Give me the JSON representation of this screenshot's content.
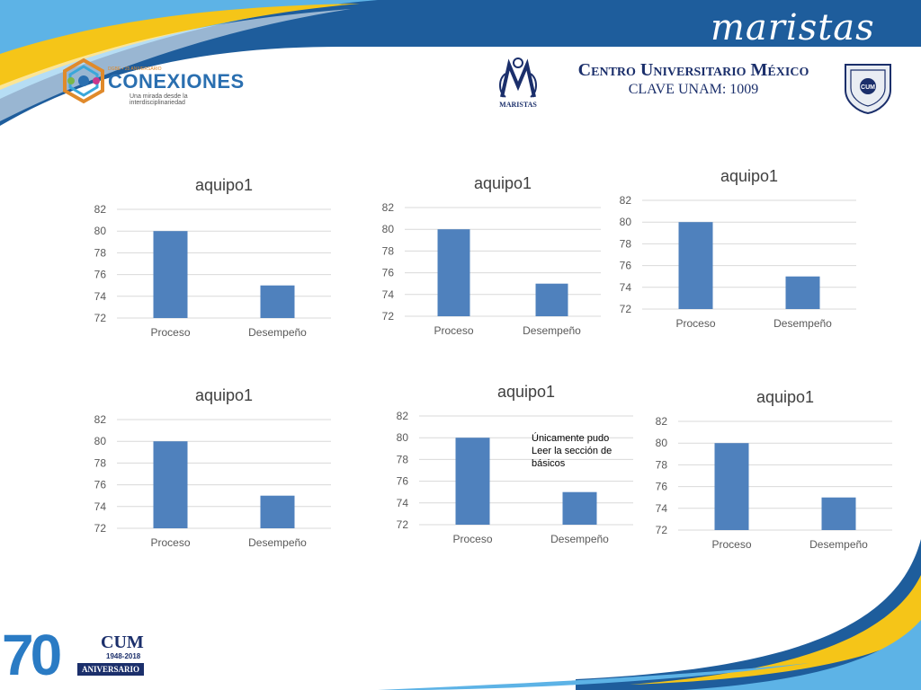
{
  "header": {
    "brand_word": "maristas",
    "conexiones": {
      "small_text": "DGBE • 25 ANIVERSARIO",
      "title": "CONEXIONES",
      "tagline": "Una mirada desde la interdisciplinariedad"
    },
    "maristas_logo_label": "MARISTAS",
    "institution": "Centro Universitario México",
    "clave": "CLAVE UNAM: 1009",
    "shield_text": "CUM"
  },
  "footer": {
    "anniversary_number": "70",
    "cum_mark": "CUM",
    "years": "1948-2018",
    "anniversary_label": "ANIVERSARIO"
  },
  "colors": {
    "bar": "#4F81BD",
    "grid": "#D9D9D9",
    "axis_text": "#595959",
    "title": "#404040",
    "banner_dark": "#1E5D9C",
    "banner_light": "#5DB3E6",
    "accent_yellow": "#F5C518"
  },
  "chart_data": [
    {
      "type": "bar",
      "title": "aquipo1",
      "categories": [
        "Proceso",
        "Desempeño"
      ],
      "values": [
        80,
        75
      ],
      "ylim": [
        72,
        82
      ],
      "yticks": [
        72,
        74,
        76,
        78,
        80,
        82
      ],
      "grid": true,
      "annotation": ""
    },
    {
      "type": "bar",
      "title": "aquipo1",
      "categories": [
        "Proceso",
        "Desempeño"
      ],
      "values": [
        80,
        75
      ],
      "ylim": [
        72,
        82
      ],
      "yticks": [
        72,
        74,
        76,
        78,
        80,
        82
      ],
      "grid": true,
      "annotation": ""
    },
    {
      "type": "bar",
      "title": "aquipo1",
      "categories": [
        "Proceso",
        "Desempeño"
      ],
      "values": [
        80,
        75
      ],
      "ylim": [
        72,
        82
      ],
      "yticks": [
        72,
        74,
        76,
        78,
        80,
        82
      ],
      "grid": true,
      "annotation": ""
    },
    {
      "type": "bar",
      "title": "aquipo1",
      "categories": [
        "Proceso",
        "Desempeño"
      ],
      "values": [
        80,
        75
      ],
      "ylim": [
        72,
        82
      ],
      "yticks": [
        72,
        74,
        76,
        78,
        80,
        82
      ],
      "grid": true,
      "annotation": ""
    },
    {
      "type": "bar",
      "title": "aquipo1",
      "categories": [
        "Proceso",
        "Desempeño"
      ],
      "values": [
        80,
        75
      ],
      "ylim": [
        72,
        82
      ],
      "yticks": [
        72,
        74,
        76,
        78,
        80,
        82
      ],
      "grid": true,
      "annotation": "Únicamente pudo\nLeer la sección de\nbásicos"
    },
    {
      "type": "bar",
      "title": "aquipo1",
      "categories": [
        "Proceso",
        "Desempeño"
      ],
      "values": [
        80,
        75
      ],
      "ylim": [
        72,
        82
      ],
      "yticks": [
        72,
        74,
        76,
        78,
        80,
        82
      ],
      "grid": true,
      "annotation": ""
    }
  ]
}
